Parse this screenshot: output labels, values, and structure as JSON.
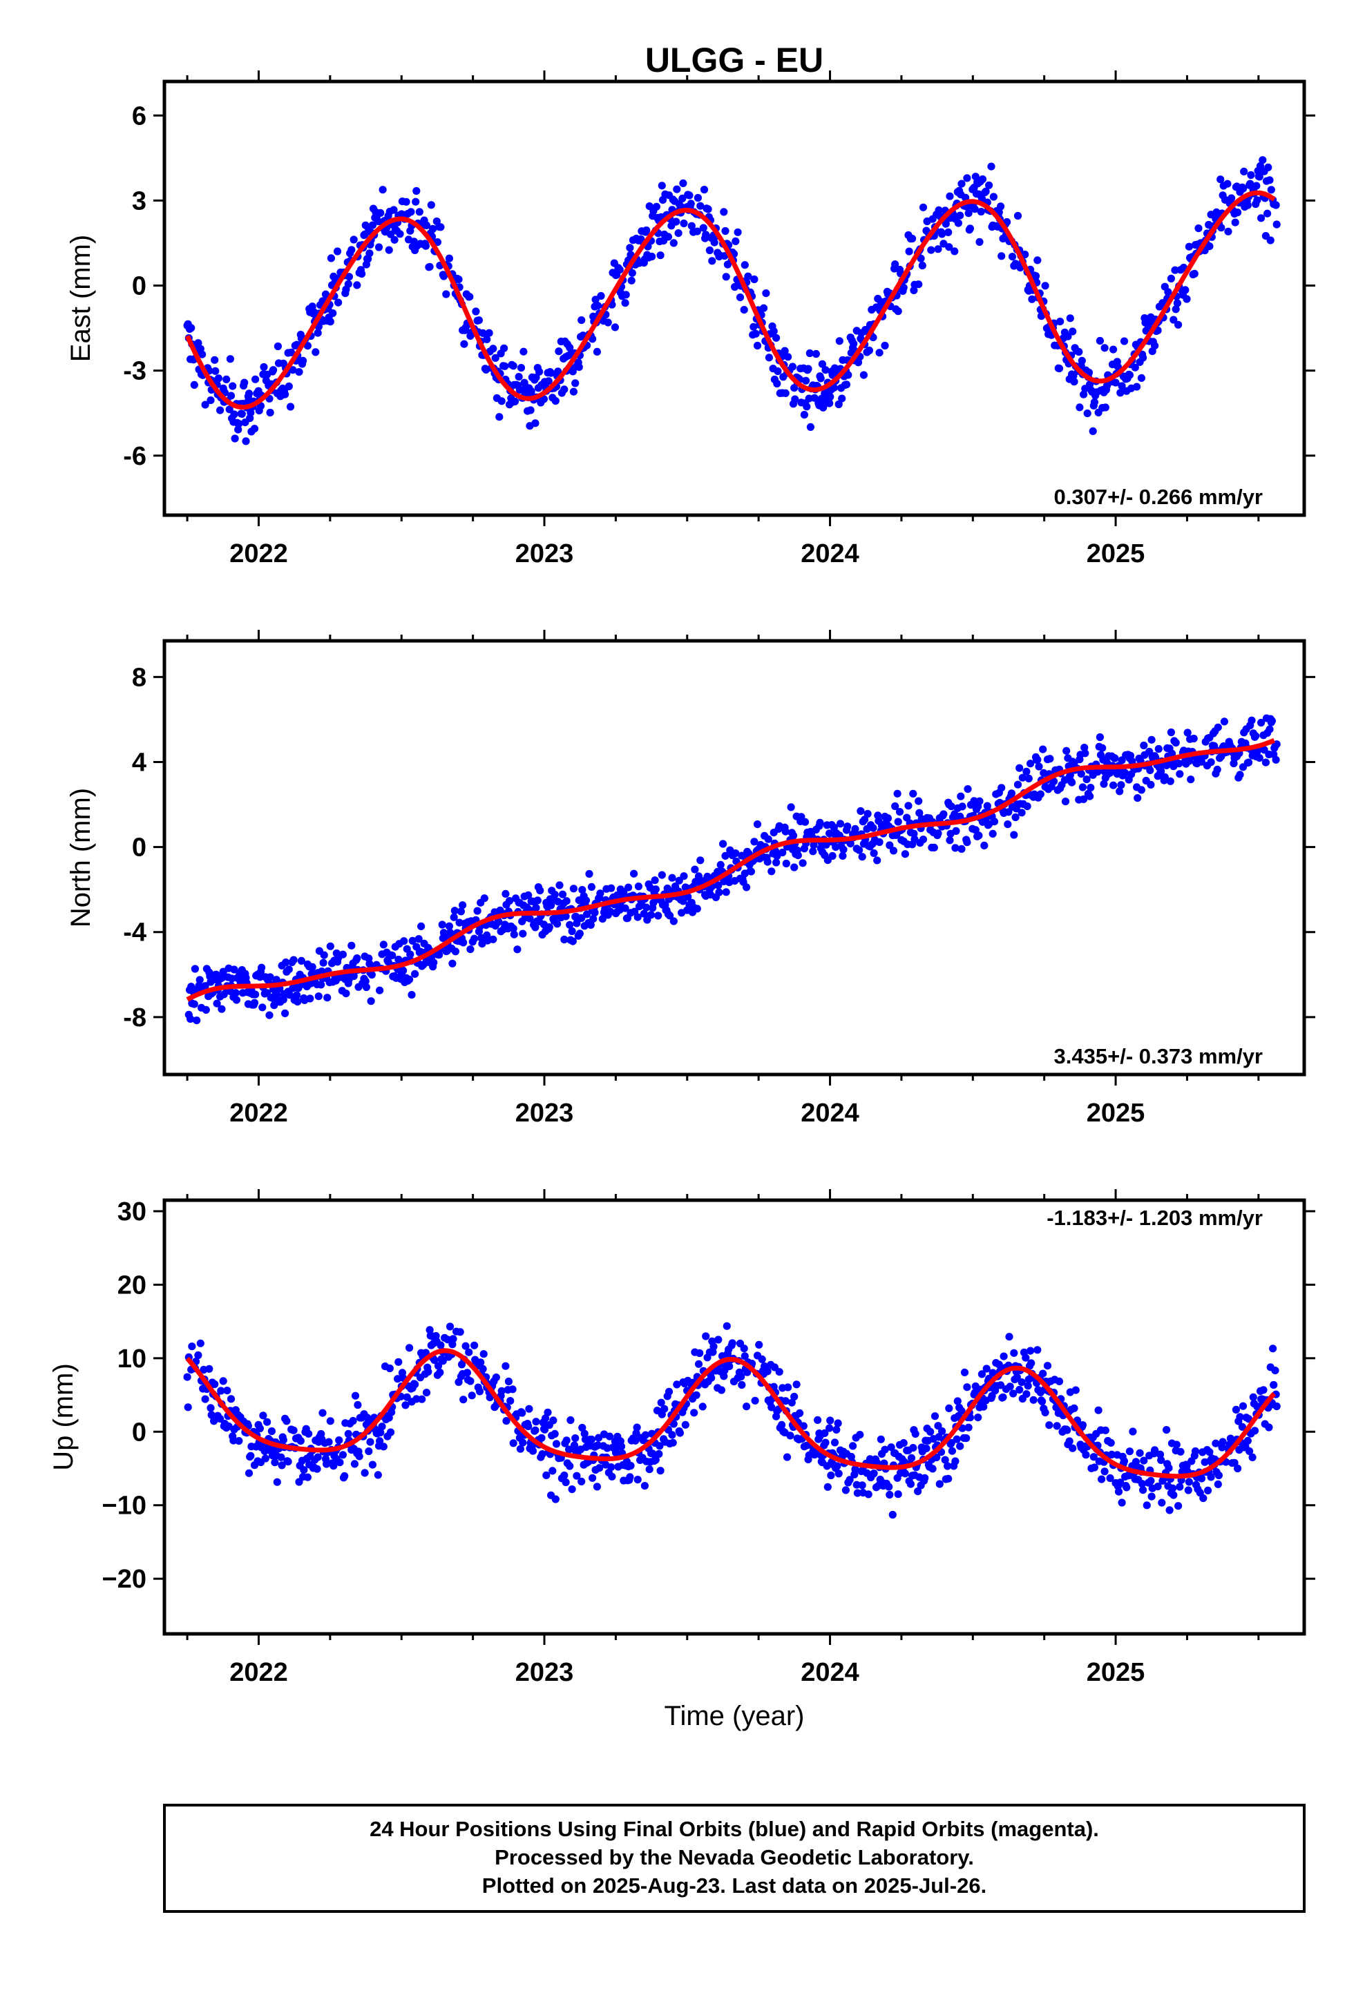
{
  "chart_data": [
    {
      "type": "scatter",
      "title": "ULGG - EU",
      "ylabel": "East (mm)",
      "xlabel": "",
      "xlim": [
        2021.67,
        2025.66
      ],
      "ylim": [
        -8.1,
        7.2
      ],
      "x_ticks": [
        2022,
        2023,
        2024,
        2025
      ],
      "x_tick_labels": [
        "2022",
        "2023",
        "2024",
        "2025"
      ],
      "y_ticks": [
        -6,
        -3,
        0,
        3,
        6
      ],
      "y_tick_labels": [
        "-6",
        "-3",
        "0",
        "3",
        "6"
      ],
      "rate_label": "0.307+/- 0.266 mm/yr",
      "rate_position": "bottom-right",
      "trend": {
        "rate": 0.307,
        "offset": -0.5,
        "ann_amp": 3.2,
        "ann_peak": 0.47,
        "semi_amp": 0.25,
        "semi_phase": 0.1
      },
      "series": [
        {
          "role": "observations",
          "color": "#0000ff",
          "noise": 1.0
        },
        {
          "role": "model_fit",
          "color": "#ff0000"
        }
      ]
    },
    {
      "type": "scatter",
      "title": "",
      "ylabel": "North (mm)",
      "xlabel": "",
      "xlim": [
        2021.67,
        2025.66
      ],
      "ylim": [
        -10.7,
        9.7
      ],
      "x_ticks": [
        2022,
        2023,
        2024,
        2025
      ],
      "x_tick_labels": [
        "2022",
        "2023",
        "2024",
        "2025"
      ],
      "y_ticks": [
        -8,
        -4,
        0,
        4,
        8
      ],
      "y_tick_labels": [
        "-8",
        "-4",
        "0",
        "4",
        "8"
      ],
      "rate_label": "3.435+/- 0.373 mm/yr",
      "rate_position": "bottom-right",
      "trend": {
        "rate": 3.435,
        "offset": -0.9,
        "ann_amp": 0.45,
        "ann_peak": 0.9,
        "semi_amp": 0.2,
        "semi_phase": 0.3
      },
      "series": [
        {
          "role": "observations",
          "color": "#0000ff",
          "noise": 1.1
        },
        {
          "role": "model_fit",
          "color": "#ff0000"
        }
      ]
    },
    {
      "type": "scatter",
      "title": "",
      "ylabel": "Up (mm)",
      "xlabel": "Time (year)",
      "xlim": [
        2021.67,
        2025.66
      ],
      "ylim": [
        -27.5,
        31.5
      ],
      "x_ticks": [
        2022,
        2023,
        2024,
        2025
      ],
      "x_tick_labels": [
        "2022",
        "2023",
        "2024",
        "2025"
      ],
      "y_ticks": [
        -20,
        -10,
        0,
        10,
        20,
        30
      ],
      "y_tick_labels": [
        "−20",
        "−10",
        "0",
        "10",
        "20",
        "30"
      ],
      "rate_label": "-1.183+/- 1.203 mm/yr",
      "rate_position": "top-right",
      "trend": {
        "rate": -1.183,
        "offset": 1.3,
        "ann_amp": 7.0,
        "ann_peak": 0.66,
        "semi_amp": 1.5,
        "semi_phase": 0.15
      },
      "series": [
        {
          "role": "observations",
          "color": "#0000ff",
          "noise": 4.2
        },
        {
          "role": "model_fit",
          "color": "#ff0000"
        }
      ]
    }
  ],
  "footer": {
    "line1": "24 Hour Positions Using Final Orbits (blue) and Rapid Orbits (magenta).",
    "line2": "Processed by the Nevada Geodetic Laboratory.",
    "line3": "Plotted on 2025-Aug-23. Last data on 2025-Jul-26."
  }
}
